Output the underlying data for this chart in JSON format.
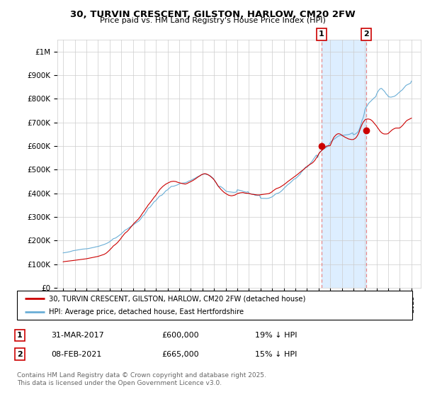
{
  "title": "30, TURVIN CRESCENT, GILSTON, HARLOW, CM20 2FW",
  "subtitle": "Price paid vs. HM Land Registry's House Price Index (HPI)",
  "legend_line1": "30, TURVIN CRESCENT, GILSTON, HARLOW, CM20 2FW (detached house)",
  "legend_line2": "HPI: Average price, detached house, East Hertfordshire",
  "footnote": "Contains HM Land Registry data © Crown copyright and database right 2025.\nThis data is licensed under the Open Government Licence v3.0.",
  "transaction1_label": "1",
  "transaction1_date": "31-MAR-2017",
  "transaction1_price": "£600,000",
  "transaction1_hpi": "19% ↓ HPI",
  "transaction2_label": "2",
  "transaction2_date": "08-FEB-2021",
  "transaction2_price": "£665,000",
  "transaction2_hpi": "15% ↓ HPI",
  "hpi_color": "#6aaed6",
  "price_color": "#cc0000",
  "vline_color": "#e88080",
  "shade_color": "#ddeeff",
  "background_color": "#ffffff",
  "ylim": [
    0,
    1050000
  ],
  "yticks": [
    0,
    100000,
    200000,
    300000,
    400000,
    500000,
    600000,
    700000,
    800000,
    900000,
    1000000
  ],
  "ytick_labels": [
    "£0",
    "£100K",
    "£200K",
    "£300K",
    "£400K",
    "£500K",
    "£600K",
    "£700K",
    "£800K",
    "£900K",
    "£1M"
  ],
  "xlim_start": 1994.5,
  "xlim_end": 2025.8,
  "transaction1_x": 2017.25,
  "transaction2_x": 2021.1,
  "transaction1_y": 600000,
  "transaction2_y": 665000,
  "hpi_x": [
    1995.0,
    1995.08,
    1995.17,
    1995.25,
    1995.33,
    1995.42,
    1995.5,
    1995.58,
    1995.67,
    1995.75,
    1995.83,
    1995.92,
    1996.0,
    1996.08,
    1996.17,
    1996.25,
    1996.33,
    1996.42,
    1996.5,
    1996.58,
    1996.67,
    1996.75,
    1996.83,
    1996.92,
    1997.0,
    1997.08,
    1997.17,
    1997.25,
    1997.33,
    1997.42,
    1997.5,
    1997.58,
    1997.67,
    1997.75,
    1997.83,
    1997.92,
    1998.0,
    1998.08,
    1998.17,
    1998.25,
    1998.33,
    1998.42,
    1998.5,
    1998.58,
    1998.67,
    1998.75,
    1998.83,
    1998.92,
    1999.0,
    1999.08,
    1999.17,
    1999.25,
    1999.33,
    1999.42,
    1999.5,
    1999.58,
    1999.67,
    1999.75,
    1999.83,
    1999.92,
    2000.0,
    2000.08,
    2000.17,
    2000.25,
    2000.33,
    2000.42,
    2000.5,
    2000.58,
    2000.67,
    2000.75,
    2000.83,
    2000.92,
    2001.0,
    2001.08,
    2001.17,
    2001.25,
    2001.33,
    2001.42,
    2001.5,
    2001.58,
    2001.67,
    2001.75,
    2001.83,
    2001.92,
    2002.0,
    2002.08,
    2002.17,
    2002.25,
    2002.33,
    2002.42,
    2002.5,
    2002.58,
    2002.67,
    2002.75,
    2002.83,
    2002.92,
    2003.0,
    2003.08,
    2003.17,
    2003.25,
    2003.33,
    2003.42,
    2003.5,
    2003.58,
    2003.67,
    2003.75,
    2003.83,
    2003.92,
    2004.0,
    2004.08,
    2004.17,
    2004.25,
    2004.33,
    2004.42,
    2004.5,
    2004.58,
    2004.67,
    2004.75,
    2004.83,
    2004.92,
    2005.0,
    2005.08,
    2005.17,
    2005.25,
    2005.33,
    2005.42,
    2005.5,
    2005.58,
    2005.67,
    2005.75,
    2005.83,
    2005.92,
    2006.0,
    2006.08,
    2006.17,
    2006.25,
    2006.33,
    2006.42,
    2006.5,
    2006.58,
    2006.67,
    2006.75,
    2006.83,
    2006.92,
    2007.0,
    2007.08,
    2007.17,
    2007.25,
    2007.33,
    2007.42,
    2007.5,
    2007.58,
    2007.67,
    2007.75,
    2007.83,
    2007.92,
    2008.0,
    2008.08,
    2008.17,
    2008.25,
    2008.33,
    2008.42,
    2008.5,
    2008.58,
    2008.67,
    2008.75,
    2008.83,
    2008.92,
    2009.0,
    2009.08,
    2009.17,
    2009.25,
    2009.33,
    2009.42,
    2009.5,
    2009.58,
    2009.67,
    2009.75,
    2009.83,
    2009.92,
    2010.0,
    2010.08,
    2010.17,
    2010.25,
    2010.33,
    2010.42,
    2010.5,
    2010.58,
    2010.67,
    2010.75,
    2010.83,
    2010.92,
    2011.0,
    2011.08,
    2011.17,
    2011.25,
    2011.33,
    2011.42,
    2011.5,
    2011.58,
    2011.67,
    2011.75,
    2011.83,
    2011.92,
    2012.0,
    2012.08,
    2012.17,
    2012.25,
    2012.33,
    2012.42,
    2012.5,
    2012.58,
    2012.67,
    2012.75,
    2012.83,
    2012.92,
    2013.0,
    2013.08,
    2013.17,
    2013.25,
    2013.33,
    2013.42,
    2013.5,
    2013.58,
    2013.67,
    2013.75,
    2013.83,
    2013.92,
    2014.0,
    2014.08,
    2014.17,
    2014.25,
    2014.33,
    2014.42,
    2014.5,
    2014.58,
    2014.67,
    2014.75,
    2014.83,
    2014.92,
    2015.0,
    2015.08,
    2015.17,
    2015.25,
    2015.33,
    2015.42,
    2015.5,
    2015.58,
    2015.67,
    2015.75,
    2015.83,
    2015.92,
    2016.0,
    2016.08,
    2016.17,
    2016.25,
    2016.33,
    2016.42,
    2016.5,
    2016.58,
    2016.67,
    2016.75,
    2016.83,
    2016.92,
    2017.0,
    2017.08,
    2017.17,
    2017.25,
    2017.33,
    2017.42,
    2017.5,
    2017.58,
    2017.67,
    2017.75,
    2017.83,
    2017.92,
    2018.0,
    2018.08,
    2018.17,
    2018.25,
    2018.33,
    2018.42,
    2018.5,
    2018.58,
    2018.67,
    2018.75,
    2018.83,
    2018.92,
    2019.0,
    2019.08,
    2019.17,
    2019.25,
    2019.33,
    2019.42,
    2019.5,
    2019.58,
    2019.67,
    2019.75,
    2019.83,
    2019.92,
    2020.0,
    2020.08,
    2020.17,
    2020.25,
    2020.33,
    2020.42,
    2020.5,
    2020.58,
    2020.67,
    2020.75,
    2020.83,
    2020.92,
    2021.0,
    2021.08,
    2021.17,
    2021.25,
    2021.33,
    2021.42,
    2021.5,
    2021.58,
    2021.67,
    2021.75,
    2021.83,
    2021.92,
    2022.0,
    2022.08,
    2022.17,
    2022.25,
    2022.33,
    2022.42,
    2022.5,
    2022.58,
    2022.67,
    2022.75,
    2022.83,
    2022.92,
    2023.0,
    2023.08,
    2023.17,
    2023.25,
    2023.33,
    2023.42,
    2023.5,
    2023.58,
    2023.67,
    2023.75,
    2023.83,
    2023.92,
    2024.0,
    2024.08,
    2024.17,
    2024.25,
    2024.33,
    2024.42,
    2024.5,
    2024.58,
    2024.67,
    2024.75,
    2024.83,
    2024.92,
    2025.0
  ],
  "hpi_y": [
    148000,
    148500,
    149000,
    149800,
    150500,
    151200,
    152000,
    153000,
    154200,
    155500,
    156800,
    157500,
    158000,
    158800,
    159500,
    160200,
    161000,
    161800,
    162500,
    163200,
    163800,
    164200,
    164600,
    164900,
    165000,
    165500,
    166200,
    167000,
    167800,
    168500,
    169500,
    170500,
    171500,
    172500,
    173500,
    174200,
    175000,
    176200,
    177500,
    179000,
    180500,
    181800,
    183000,
    184500,
    186200,
    188000,
    190000,
    192500,
    195000,
    198000,
    201500,
    205000,
    208000,
    209500,
    210500,
    213000,
    216000,
    219000,
    222000,
    225000,
    228000,
    232000,
    236000,
    240000,
    244000,
    246000,
    248000,
    251000,
    254000,
    257000,
    260000,
    262500,
    265000,
    268000,
    271000,
    274000,
    277000,
    279500,
    282000,
    286000,
    291000,
    296500,
    303000,
    306500,
    310000,
    316000,
    323000,
    330000,
    337000,
    339500,
    342000,
    347500,
    353000,
    358500,
    364000,
    367000,
    370000,
    375000,
    380500,
    385500,
    389000,
    390500,
    392000,
    396000,
    400500,
    405500,
    410000,
    412500,
    415000,
    419000,
    423000,
    426500,
    429500,
    429500,
    430000,
    431000,
    432500,
    434000,
    435500,
    437500,
    440000,
    441500,
    442500,
    443000,
    443500,
    444000,
    445000,
    446000,
    447500,
    449500,
    452000,
    453500,
    455000,
    457000,
    459500,
    461500,
    463500,
    465500,
    468000,
    470000,
    472000,
    474000,
    476000,
    478000,
    480000,
    481000,
    481500,
    481000,
    480000,
    479000,
    478000,
    476000,
    473500,
    470500,
    467000,
    463500,
    458000,
    451500,
    444500,
    438000,
    432000,
    427000,
    430000,
    428000,
    425000,
    422000,
    418500,
    414500,
    410000,
    408000,
    407000,
    406500,
    406000,
    405500,
    405000,
    404500,
    404000,
    404000,
    404500,
    405000,
    415000,
    414000,
    413000,
    412000,
    411000,
    410000,
    408000,
    407000,
    406000,
    405000,
    405000,
    407000,
    400000,
    399000,
    398000,
    397000,
    396500,
    396000,
    392000,
    391500,
    391000,
    391000,
    391500,
    392000,
    380000,
    379000,
    378500,
    378500,
    378500,
    378500,
    378000,
    378500,
    379000,
    380000,
    381500,
    383000,
    385000,
    388000,
    391500,
    395000,
    398000,
    399500,
    400000,
    402000,
    404500,
    407500,
    411000,
    415500,
    420000,
    424000,
    428000,
    432000,
    436000,
    439000,
    442000,
    445500,
    449500,
    453500,
    457500,
    461000,
    462000,
    465000,
    469000,
    473000,
    477000,
    481000,
    488000,
    493000,
    498000,
    503000,
    508000,
    512000,
    510000,
    514000,
    519000,
    524000,
    529000,
    534000,
    540000,
    546000,
    552000,
    558000,
    562000,
    551000,
    565000,
    570000,
    576000,
    582000,
    587000,
    590000,
    590000,
    592000,
    594000,
    597000,
    601000,
    608000,
    615000,
    619000,
    623000,
    626000,
    629000,
    632000,
    635000,
    638000,
    641000,
    643000,
    644000,
    644500,
    645000,
    645500,
    646000,
    646500,
    647000,
    647500,
    648000,
    649000,
    650000,
    651500,
    653500,
    656000,
    648000,
    649000,
    651000,
    654000,
    657000,
    662000,
    670000,
    682000,
    695000,
    710000,
    718000,
    735000,
    755000,
    762000,
    769000,
    776000,
    782000,
    786000,
    790000,
    794000,
    798000,
    802000,
    806000,
    808000,
    820000,
    828000,
    835000,
    840000,
    843000,
    844000,
    840000,
    836000,
    832000,
    826000,
    820000,
    816000,
    810000,
    808000,
    807000,
    807000,
    808000,
    809000,
    810000,
    812000,
    815000,
    818000,
    822000,
    826000,
    830000,
    833000,
    836000,
    840000,
    845000,
    850000,
    855000,
    858000,
    860000,
    862000,
    864000,
    866000,
    875000
  ],
  "price_x_vals": [
    1995.0,
    1995.08,
    1995.17,
    1995.25,
    1995.33,
    1995.42,
    1995.5,
    1995.58,
    1995.67,
    1995.75,
    1995.83,
    1995.92,
    1996.0,
    1996.08,
    1996.17,
    1996.25,
    1996.33,
    1996.42,
    1996.5,
    1996.58,
    1996.67,
    1996.75,
    1996.83,
    1996.92,
    1997.0,
    1997.08,
    1997.17,
    1997.25,
    1997.33,
    1997.42,
    1997.5,
    1997.58,
    1997.67,
    1997.75,
    1997.83,
    1997.92,
    1998.0,
    1998.08,
    1998.17,
    1998.25,
    1998.33,
    1998.42,
    1998.5,
    1998.58,
    1998.67,
    1998.75,
    1998.83,
    1998.92,
    1999.0,
    1999.08,
    1999.17,
    1999.25,
    1999.33,
    1999.42,
    1999.5,
    1999.58,
    1999.67,
    1999.75,
    1999.83,
    1999.92,
    2000.0,
    2000.08,
    2000.17,
    2000.25,
    2000.33,
    2000.42,
    2000.5,
    2000.58,
    2000.67,
    2000.75,
    2000.83,
    2000.92,
    2001.0,
    2001.08,
    2001.17,
    2001.25,
    2001.33,
    2001.42,
    2001.5,
    2001.58,
    2001.67,
    2001.75,
    2001.83,
    2001.92,
    2002.0,
    2002.08,
    2002.17,
    2002.25,
    2002.33,
    2002.42,
    2002.5,
    2002.58,
    2002.67,
    2002.75,
    2002.83,
    2002.92,
    2003.0,
    2003.08,
    2003.17,
    2003.25,
    2003.33,
    2003.42,
    2003.5,
    2003.58,
    2003.67,
    2003.75,
    2003.83,
    2003.92,
    2004.0,
    2004.08,
    2004.17,
    2004.25,
    2004.33,
    2004.42,
    2004.5,
    2004.58,
    2004.67,
    2004.75,
    2004.83,
    2004.92,
    2005.0,
    2005.08,
    2005.17,
    2005.25,
    2005.33,
    2005.42,
    2005.5,
    2005.58,
    2005.67,
    2005.75,
    2005.83,
    2005.92,
    2006.0,
    2006.08,
    2006.17,
    2006.25,
    2006.33,
    2006.42,
    2006.5,
    2006.58,
    2006.67,
    2006.75,
    2006.83,
    2006.92,
    2007.0,
    2007.08,
    2007.17,
    2007.25,
    2007.33,
    2007.42,
    2007.5,
    2007.58,
    2007.67,
    2007.75,
    2007.83,
    2007.92,
    2008.0,
    2008.08,
    2008.17,
    2008.25,
    2008.33,
    2008.42,
    2008.5,
    2008.58,
    2008.67,
    2008.75,
    2008.83,
    2008.92,
    2009.0,
    2009.08,
    2009.17,
    2009.25,
    2009.33,
    2009.42,
    2009.5,
    2009.58,
    2009.67,
    2009.75,
    2009.83,
    2009.92,
    2010.0,
    2010.08,
    2010.17,
    2010.25,
    2010.33,
    2010.42,
    2010.5,
    2010.58,
    2010.67,
    2010.75,
    2010.83,
    2010.92,
    2011.0,
    2011.08,
    2011.17,
    2011.25,
    2011.33,
    2011.42,
    2011.5,
    2011.58,
    2011.67,
    2011.75,
    2011.83,
    2011.92,
    2012.0,
    2012.08,
    2012.17,
    2012.25,
    2012.33,
    2012.42,
    2012.5,
    2012.58,
    2012.67,
    2012.75,
    2012.83,
    2012.92,
    2013.0,
    2013.08,
    2013.17,
    2013.25,
    2013.33,
    2013.42,
    2013.5,
    2013.58,
    2013.67,
    2013.75,
    2013.83,
    2013.92,
    2014.0,
    2014.08,
    2014.17,
    2014.25,
    2014.33,
    2014.42,
    2014.5,
    2014.58,
    2014.67,
    2014.75,
    2014.83,
    2014.92,
    2015.0,
    2015.08,
    2015.17,
    2015.25,
    2015.33,
    2015.42,
    2015.5,
    2015.58,
    2015.67,
    2015.75,
    2015.83,
    2015.92,
    2016.0,
    2016.08,
    2016.17,
    2016.25,
    2016.33,
    2016.42,
    2016.5,
    2016.58,
    2016.67,
    2016.75,
    2016.83,
    2016.92,
    2017.0,
    2017.08,
    2017.17,
    2017.25,
    2017.33,
    2017.42,
    2017.5,
    2017.58,
    2017.67,
    2017.75,
    2017.83,
    2017.92,
    2018.0,
    2018.08,
    2018.17,
    2018.25,
    2018.33,
    2018.42,
    2018.5,
    2018.58,
    2018.67,
    2018.75,
    2018.83,
    2018.92,
    2019.0,
    2019.08,
    2019.17,
    2019.25,
    2019.33,
    2019.42,
    2019.5,
    2019.58,
    2019.67,
    2019.75,
    2019.83,
    2019.92,
    2020.0,
    2020.08,
    2020.17,
    2020.25,
    2020.33,
    2020.42,
    2020.5,
    2020.58,
    2020.67,
    2020.75,
    2020.83,
    2020.92,
    2021.0,
    2021.08,
    2021.17,
    2021.25,
    2021.33,
    2021.42,
    2021.5,
    2021.58,
    2021.67,
    2021.75,
    2021.83,
    2021.92,
    2022.0,
    2022.08,
    2022.17,
    2022.25,
    2022.33,
    2022.42,
    2022.5,
    2022.58,
    2022.67,
    2022.75,
    2022.83,
    2022.92,
    2023.0,
    2023.08,
    2023.17,
    2023.25,
    2023.33,
    2023.42,
    2023.5,
    2023.58,
    2023.67,
    2023.75,
    2023.83,
    2023.92,
    2024.0,
    2024.08,
    2024.17,
    2024.25,
    2024.33,
    2024.42,
    2024.5,
    2024.58,
    2024.67,
    2024.75,
    2024.83,
    2024.92,
    2025.0
  ],
  "price_y_vals": [
    110000,
    111000,
    111500,
    112000,
    112500,
    113000,
    113500,
    114000,
    114500,
    115000,
    115500,
    116000,
    116500,
    117000,
    117500,
    118000,
    118500,
    119000,
    119500,
    120000,
    120500,
    121000,
    121500,
    122000,
    123000,
    123800,
    124500,
    125300,
    126000,
    127000,
    128000,
    129000,
    130000,
    130800,
    131500,
    132200,
    133000,
    134200,
    135500,
    137000,
    138500,
    139800,
    141000,
    143000,
    145500,
    148500,
    152000,
    156000,
    160000,
    164000,
    168500,
    173000,
    177500,
    180500,
    183500,
    187000,
    191000,
    195500,
    200000,
    205500,
    211000,
    216500,
    222000,
    227000,
    231500,
    235000,
    238000,
    242000,
    247000,
    252000,
    257000,
    262000,
    267000,
    272000,
    276000,
    280000,
    284000,
    288000,
    292000,
    297000,
    303000,
    309500,
    315000,
    321000,
    327000,
    333000,
    339000,
    345000,
    351000,
    356000,
    361000,
    366500,
    372000,
    377500,
    383000,
    388000,
    393000,
    399000,
    405000,
    411000,
    416500,
    421000,
    425000,
    429000,
    432500,
    436000,
    438500,
    441000,
    443000,
    445000,
    447000,
    449000,
    450000,
    450500,
    451000,
    450500,
    450000,
    449000,
    447000,
    446000,
    444500,
    443500,
    442500,
    441500,
    440500,
    440000,
    439000,
    440000,
    441500,
    443500,
    445500,
    447500,
    450000,
    452000,
    454000,
    456500,
    459000,
    462000,
    465000,
    468000,
    471000,
    473000,
    476000,
    479000,
    480000,
    482000,
    483000,
    483000,
    482000,
    480000,
    478000,
    475500,
    472500,
    469000,
    465500,
    461500,
    457000,
    451500,
    445000,
    438500,
    432000,
    426500,
    421500,
    417000,
    413000,
    409000,
    405000,
    402000,
    399000,
    396500,
    394000,
    392000,
    391000,
    390000,
    389500,
    390000,
    391000,
    392000,
    393500,
    396000,
    399000,
    400000,
    401000,
    402000,
    402500,
    403000,
    403000,
    402000,
    401000,
    400500,
    400000,
    400000,
    399000,
    398000,
    397000,
    396000,
    395500,
    395000,
    394500,
    394000,
    393500,
    393000,
    393000,
    393000,
    394000,
    394500,
    395000,
    395500,
    396000,
    396500,
    397000,
    397500,
    398500,
    399500,
    401500,
    404000,
    407000,
    410500,
    413500,
    416500,
    419000,
    421000,
    422000,
    423500,
    425500,
    428000,
    430500,
    433500,
    436000,
    439000,
    442000,
    445500,
    449000,
    452000,
    455000,
    458000,
    461000,
    464000,
    467000,
    470000,
    473000,
    476000,
    479000,
    482500,
    486000,
    489500,
    493000,
    496000,
    499000,
    502500,
    506000,
    509500,
    513000,
    516500,
    519500,
    522000,
    524500,
    527000,
    530000,
    534000,
    539000,
    545000,
    551000,
    558000,
    566000,
    572000,
    576500,
    580000,
    583500,
    587000,
    591000,
    595500,
    599500,
    600500,
    600800,
    601000,
    602000,
    611000,
    621000,
    631000,
    638000,
    643000,
    647000,
    650000,
    652000,
    652000,
    651000,
    649000,
    646000,
    643000,
    640500,
    638000,
    636000,
    634000,
    632000,
    630000,
    629000,
    628000,
    627500,
    627500,
    628000,
    630000,
    633000,
    637000,
    643000,
    651000,
    660000,
    672000,
    683000,
    692000,
    700000,
    706000,
    711000,
    713000,
    714000,
    714500,
    714000,
    713000,
    711000,
    708000,
    704000,
    699000,
    694000,
    689000,
    684000,
    678000,
    672000,
    666000,
    661000,
    657000,
    654000,
    652000,
    651000,
    651000,
    651000,
    651500,
    653000,
    657000,
    661000,
    665000,
    668000,
    671000,
    673000,
    675000,
    676000,
    676000,
    676000,
    676000,
    677000,
    680000,
    684000,
    688000,
    693000,
    698000,
    703000,
    707000,
    710000,
    712000,
    714000,
    716000,
    718000
  ]
}
